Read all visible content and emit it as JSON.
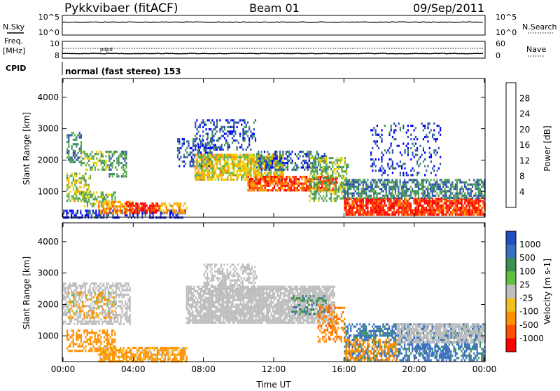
{
  "header": {
    "title": "Pykkvibaer (fitACF)",
    "beam": "Beam 01",
    "date": "09/Sep/2011"
  },
  "status_panels": {
    "nsky_label": "N.Sky",
    "nsky_ticks": [
      "10^5",
      "10^0"
    ],
    "nsearch_label": "N.Search",
    "nsearch_ticks": [
      "10^5",
      "10^0"
    ],
    "freq_label": "Freq.",
    "freq_unit": "[MHz]",
    "freq_ticks": [
      "10",
      "8"
    ],
    "nave_label": "Nave",
    "nave_ticks": [
      "60",
      "0"
    ],
    "cpid_label": "CPID",
    "cpid_text": "normal (fast stereo) 153"
  },
  "colors": {
    "power_scale": [
      "#0000ff",
      "#2f4fb0",
      "#3f8f5f",
      "#61b04a",
      "#f0d000",
      "#ff9900",
      "#ff5000",
      "#ff0000"
    ],
    "velocity_scale": [
      "#2050c0",
      "#3a70c0",
      "#3a9050",
      "#60c040",
      "#bfbfbf",
      "#f0c020",
      "#ff9000",
      "#ff5000",
      "#ff0000"
    ],
    "ground_scatter": "#bdbdbd"
  },
  "chart_data": [
    {
      "type": "heatmap",
      "name": "power",
      "ylabel": "Slant Range [km]",
      "xlabel": "",
      "x_ticks": [
        "00:00",
        "04:00",
        "08:00",
        "12:00",
        "16:00",
        "20:00",
        "00:00"
      ],
      "xlim_hours": [
        0,
        24
      ],
      "y_ticks": [
        "1000",
        "2000",
        "3000",
        "4000"
      ],
      "ylim": [
        180,
        4600
      ],
      "colorbar": {
        "label": "Power [dB]",
        "ticks": [
          "4",
          "8",
          "12",
          "16",
          "20",
          "24",
          "28"
        ],
        "range": [
          0,
          32
        ]
      },
      "bands": [
        {
          "t0": 0.0,
          "t1": 7.0,
          "r0": 180,
          "r1": 420,
          "value": 4,
          "density": 0.5
        },
        {
          "t0": 0.2,
          "t1": 1.0,
          "r0": 1900,
          "r1": 2900,
          "value": 10,
          "density": 0.55
        },
        {
          "t0": 1.0,
          "t1": 2.6,
          "r0": 1700,
          "r1": 2300,
          "value": 14,
          "density": 0.45
        },
        {
          "t0": 2.6,
          "t1": 3.6,
          "r0": 1500,
          "r1": 2300,
          "value": 11,
          "density": 0.5
        },
        {
          "t0": 0.2,
          "t1": 1.6,
          "r0": 700,
          "r1": 1600,
          "value": 16,
          "density": 0.55
        },
        {
          "t0": 1.0,
          "t1": 3.0,
          "r0": 500,
          "r1": 1000,
          "value": 14,
          "density": 0.45
        },
        {
          "t0": 2.0,
          "t1": 4.0,
          "r0": 300,
          "r1": 700,
          "value": 22,
          "density": 0.7
        },
        {
          "t0": 3.5,
          "t1": 5.5,
          "r0": 300,
          "r1": 650,
          "value": 28,
          "density": 0.75
        },
        {
          "t0": 5.5,
          "t1": 7.0,
          "r0": 350,
          "r1": 650,
          "value": 20,
          "density": 0.6
        },
        {
          "t0": 6.5,
          "t1": 8.5,
          "r0": 1800,
          "r1": 2700,
          "value": 6,
          "density": 0.45
        },
        {
          "t0": 7.5,
          "t1": 12.5,
          "r0": 1400,
          "r1": 2200,
          "value": 18,
          "density": 0.8
        },
        {
          "t0": 10.5,
          "t1": 15.5,
          "r0": 1000,
          "r1": 1500,
          "value": 26,
          "density": 0.8
        },
        {
          "t0": 7.5,
          "t1": 11.0,
          "r0": 2300,
          "r1": 3300,
          "value": 6,
          "density": 0.35
        },
        {
          "t0": 11.0,
          "t1": 15.0,
          "r0": 1700,
          "r1": 2300,
          "value": 7,
          "density": 0.45
        },
        {
          "t0": 14.0,
          "t1": 16.2,
          "r0": 700,
          "r1": 2100,
          "value": 14,
          "density": 0.5
        },
        {
          "t0": 16.0,
          "t1": 24.0,
          "r0": 250,
          "r1": 800,
          "value": 28,
          "density": 0.85
        },
        {
          "t0": 16.0,
          "t1": 24.0,
          "r0": 800,
          "r1": 1400,
          "value": 9,
          "density": 0.65
        },
        {
          "t0": 17.5,
          "t1": 21.5,
          "r0": 1500,
          "r1": 3200,
          "value": 5,
          "density": 0.2
        }
      ]
    },
    {
      "type": "heatmap",
      "name": "velocity",
      "ylabel": "Slant Range [km]",
      "xlabel": "Time UT",
      "x_ticks": [
        "00:00",
        "04:00",
        "08:00",
        "12:00",
        "16:00",
        "20:00",
        "00:00"
      ],
      "xlim_hours": [
        0,
        24
      ],
      "y_ticks": [
        "1000",
        "2000",
        "3000",
        "4000"
      ],
      "ylim": [
        180,
        4600
      ],
      "colorbar": {
        "label": "Velocity [m s-1]",
        "ticks": [
          "1000",
          "500",
          "100",
          "25",
          "-25",
          "-100",
          "-500",
          "-1000"
        ],
        "range": [
          -1200,
          1200
        ]
      },
      "bands": [
        {
          "t0": 0.0,
          "t1": 3.8,
          "r0": 1400,
          "r1": 2700,
          "value": 0,
          "ground": true,
          "density": 0.55
        },
        {
          "t0": 0.3,
          "t1": 3.0,
          "r0": 1600,
          "r1": 2400,
          "value": -120,
          "density": 0.35
        },
        {
          "t0": 0.2,
          "t1": 3.0,
          "r0": 500,
          "r1": 1200,
          "value": -300,
          "density": 0.55
        },
        {
          "t0": 2.0,
          "t1": 7.0,
          "r0": 220,
          "r1": 650,
          "value": -200,
          "density": 0.75
        },
        {
          "t0": 7.0,
          "t1": 15.5,
          "r0": 1400,
          "r1": 2600,
          "value": 0,
          "ground": true,
          "density": 0.85
        },
        {
          "t0": 8.0,
          "t1": 11.0,
          "r0": 2300,
          "r1": 3300,
          "value": 0,
          "ground": true,
          "density": 0.5
        },
        {
          "t0": 13.0,
          "t1": 15.0,
          "r0": 1700,
          "r1": 2300,
          "value": 400,
          "density": 0.35
        },
        {
          "t0": 14.5,
          "t1": 16.0,
          "r0": 800,
          "r1": 2000,
          "value": -400,
          "density": 0.4
        },
        {
          "t0": 16.0,
          "t1": 24.0,
          "r0": 250,
          "r1": 1400,
          "value": 600,
          "density": 0.55
        },
        {
          "t0": 16.0,
          "t1": 19.0,
          "r0": 250,
          "r1": 900,
          "value": -300,
          "density": 0.5
        },
        {
          "t0": 19.0,
          "t1": 24.0,
          "r0": 800,
          "r1": 1400,
          "value": 0,
          "ground": true,
          "density": 0.7
        },
        {
          "t0": 20.0,
          "t1": 22.0,
          "r0": 300,
          "r1": 700,
          "value": 800,
          "density": 0.5
        }
      ]
    }
  ]
}
